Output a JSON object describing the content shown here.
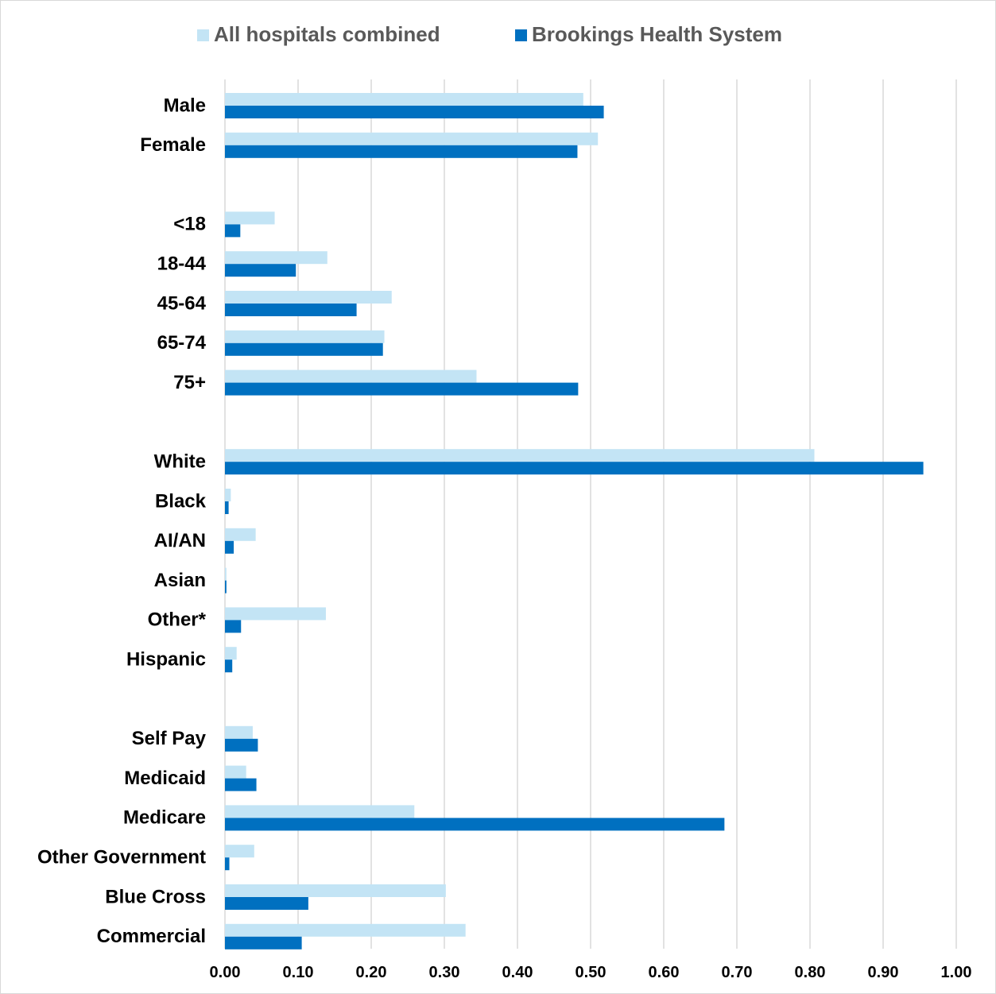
{
  "chart_data": {
    "type": "bar",
    "orientation": "horizontal",
    "title": "",
    "xlabel": "",
    "ylabel": "",
    "xlim": [
      0,
      1.0
    ],
    "grid": true,
    "legend_position": "top-center",
    "x_ticks": [
      "0.00",
      "0.10",
      "0.20",
      "0.30",
      "0.40",
      "0.50",
      "0.60",
      "0.70",
      "0.80",
      "0.90",
      "1.00"
    ],
    "rows": [
      {
        "label": "Male"
      },
      {
        "label": "Female"
      },
      {
        "label": ""
      },
      {
        "label": "<18"
      },
      {
        "label": "18-44"
      },
      {
        "label": "45-64"
      },
      {
        "label": "65-74"
      },
      {
        "label": "75+"
      },
      {
        "label": ""
      },
      {
        "label": "White"
      },
      {
        "label": "Black"
      },
      {
        "label": "AI/AN"
      },
      {
        "label": "Asian"
      },
      {
        "label": "Other*"
      },
      {
        "label": "Hispanic"
      },
      {
        "label": ""
      },
      {
        "label": "Self Pay"
      },
      {
        "label": "Medicaid"
      },
      {
        "label": "Medicare"
      },
      {
        "label": "Other Government"
      },
      {
        "label": "Blue Cross"
      },
      {
        "label": "Commercial"
      }
    ],
    "series": [
      {
        "name": "All hospitals combined",
        "color": "#c3e4f5",
        "values": [
          0.49,
          0.51,
          null,
          0.068,
          0.14,
          0.228,
          0.218,
          0.344,
          null,
          0.806,
          0.008,
          0.042,
          0.002,
          0.138,
          0.016,
          null,
          0.038,
          0.029,
          0.259,
          0.04,
          0.302,
          0.329
        ]
      },
      {
        "name": "Brookings Health System",
        "color": "#0070c0",
        "values": [
          0.518,
          0.482,
          null,
          0.021,
          0.097,
          0.18,
          0.216,
          0.483,
          null,
          0.955,
          0.005,
          0.012,
          0.002,
          0.022,
          0.01,
          null,
          0.045,
          0.043,
          0.683,
          0.006,
          0.114,
          0.105
        ]
      }
    ]
  },
  "colors": {
    "grid": "#d9d9d9",
    "label_text": "#000000",
    "legend_text": "#595959"
  }
}
